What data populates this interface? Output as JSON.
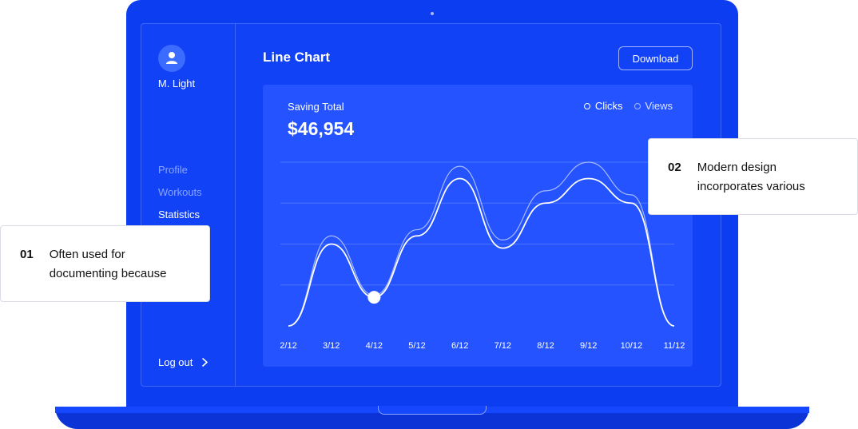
{
  "user": {
    "name": "M. Light"
  },
  "sidebar": {
    "items": [
      {
        "label": "Profile",
        "active": false
      },
      {
        "label": "Workouts",
        "active": false
      },
      {
        "label": "Statistics",
        "active": true
      }
    ],
    "logout_label": "Log out"
  },
  "main": {
    "title": "Line Chart",
    "download_label": "Download"
  },
  "card": {
    "label": "Saving Total",
    "value": "$46,954"
  },
  "chart_data": {
    "type": "line",
    "categories": [
      "2/12",
      "3/12",
      "4/12",
      "5/12",
      "6/12",
      "7/12",
      "8/12",
      "9/12",
      "10/12",
      "11/12"
    ],
    "legend": [
      "Clicks",
      "Views"
    ],
    "legend_position": "top-right",
    "grid": true,
    "series": [
      {
        "name": "Clicks",
        "values": [
          0,
          2.0,
          0.7,
          2.2,
          3.6,
          1.9,
          3.0,
          3.6,
          3.0,
          0
        ]
      },
      {
        "name": "Views",
        "values": [
          0,
          2.2,
          0.75,
          2.35,
          3.9,
          2.1,
          3.3,
          4.0,
          3.2,
          0
        ]
      }
    ],
    "ylim": [
      0,
      4
    ],
    "highlight": {
      "category": "4/12",
      "series": "Clicks"
    },
    "colors": {
      "clicks": "#ffffff",
      "views": "#a6baff",
      "grid": "#4c74ff"
    }
  },
  "callouts": [
    {
      "number": "01",
      "text": "Often used for\ndocumenting because"
    },
    {
      "number": "02",
      "text": "Modern design\nincorporates various"
    }
  ]
}
